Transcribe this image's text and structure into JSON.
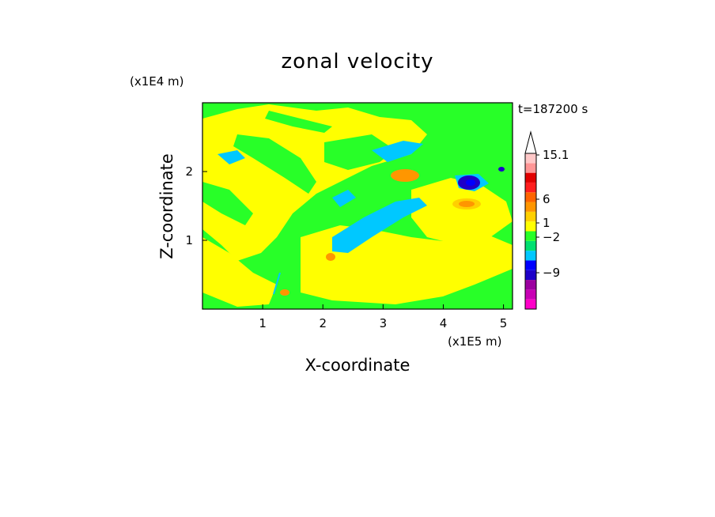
{
  "chart_data": {
    "type": "heatmap",
    "title": "zonal velocity",
    "xlabel": "X-coordinate",
    "ylabel": "Z-coordinate",
    "x_scale_label": "(x1E5 m)",
    "y_scale_label": "(x1E4 m)",
    "time_label": "t=187200 s",
    "xlim": [
      0,
      5.15
    ],
    "ylim": [
      0,
      3.0
    ],
    "x_ticks": [
      "1",
      "2",
      "3",
      "4",
      "5"
    ],
    "x_tick_values": [
      1,
      2,
      3,
      4,
      5
    ],
    "y_ticks": [
      "1",
      "2"
    ],
    "y_tick_values": [
      1,
      2
    ],
    "colorbar": {
      "colors": [
        "#ff00c8",
        "#c800b4",
        "#9b00a0",
        "#1e00c8",
        "#0000ff",
        "#00c8ff",
        "#00e070",
        "#28ff28",
        "#ffff00",
        "#ffd000",
        "#ff9600",
        "#ff6400",
        "#ff1e1e",
        "#e10000",
        "#ff9696",
        "#ffc8c8"
      ],
      "labels": [
        "15.1",
        "6",
        "1",
        "−2",
        "−9"
      ],
      "label_values": [
        15.1,
        6,
        1,
        -2,
        -9
      ]
    },
    "field_description": "dominant levels: green (~0), yellow (~1), cyan (~-2) bands; localized blue minimum near x=4.4, z=1.85; orange highs near x=3.4, z=1.9 and x=4.4, z=1.55"
  }
}
